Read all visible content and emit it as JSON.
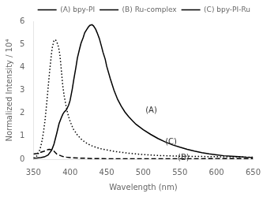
{
  "chart_data": {
    "type": "line",
    "xlabel": "Wavelength (nm)",
    "ylabel": "Normalized Intensity / 10⁴",
    "xlim": [
      350,
      650
    ],
    "ylim": [
      0,
      6
    ],
    "xticks": [
      350,
      400,
      450,
      500,
      550,
      600,
      650
    ],
    "yticks": [
      0,
      1,
      2,
      3,
      4,
      5,
      6
    ],
    "grid": false,
    "legend": "upper right",
    "series": [
      {
        "name": "(A) bpy-PI",
        "color": "black",
        "line_style": "solid",
        "x": [
          350,
          355,
          360,
          365,
          370,
          375,
          378,
          380,
          382,
          385,
          388,
          390,
          392,
          395,
          398,
          400,
          403,
          405,
          408,
          410,
          413,
          415,
          418,
          420,
          423,
          425,
          427,
          430,
          432,
          435,
          437,
          440,
          443,
          445,
          448,
          450,
          455,
          460,
          465,
          470,
          475,
          480,
          485,
          490,
          495,
          500,
          510,
          520,
          530,
          540,
          550,
          560,
          570,
          580,
          590,
          600,
          610,
          620,
          630,
          640,
          650
        ],
        "values": [
          0.04,
          0.05,
          0.07,
          0.1,
          0.18,
          0.4,
          0.65,
          0.9,
          1.15,
          1.55,
          1.8,
          1.95,
          2.05,
          2.15,
          2.35,
          2.55,
          3.05,
          3.45,
          4.0,
          4.4,
          4.8,
          5.05,
          5.3,
          5.5,
          5.65,
          5.75,
          5.82,
          5.85,
          5.8,
          5.65,
          5.5,
          5.25,
          4.9,
          4.65,
          4.35,
          4.05,
          3.5,
          3.0,
          2.6,
          2.3,
          2.05,
          1.85,
          1.68,
          1.52,
          1.4,
          1.28,
          1.08,
          0.9,
          0.75,
          0.62,
          0.52,
          0.43,
          0.35,
          0.28,
          0.23,
          0.19,
          0.15,
          0.13,
          0.11,
          0.09,
          0.08
        ]
      },
      {
        "name": "(B) Ru-complex",
        "color": "black",
        "line_style": "dashed",
        "x": [
          350,
          355,
          360,
          365,
          367,
          370,
          372,
          375,
          378,
          380,
          382,
          385,
          388,
          390,
          395,
          400,
          410,
          420,
          430,
          440,
          450,
          460,
          470,
          480,
          490,
          500,
          520,
          540,
          560,
          580,
          600,
          620,
          640,
          650
        ],
        "values": [
          0.22,
          0.25,
          0.3,
          0.35,
          0.38,
          0.42,
          0.43,
          0.4,
          0.35,
          0.28,
          0.22,
          0.18,
          0.14,
          0.12,
          0.09,
          0.07,
          0.05,
          0.04,
          0.03,
          0.03,
          0.02,
          0.02,
          0.02,
          0.02,
          0.02,
          0.02,
          0.02,
          0.02,
          0.02,
          0.02,
          0.03,
          0.03,
          0.03,
          0.03
        ]
      },
      {
        "name": "(C) bpy-PI-Ru",
        "color": "black",
        "line_style": "dotted",
        "x": [
          350,
          352,
          354,
          356,
          358,
          360,
          362,
          364,
          366,
          368,
          370,
          372,
          374,
          375,
          376,
          378,
          380,
          382,
          384,
          385,
          386,
          387,
          388,
          389,
          390,
          392,
          394,
          396,
          398,
          400,
          403,
          405,
          408,
          410,
          415,
          420,
          425,
          430,
          435,
          440,
          445,
          450,
          455,
          460,
          465,
          470,
          475,
          480,
          490,
          500,
          510,
          520,
          530,
          540,
          550,
          560,
          570,
          580,
          590,
          600,
          610,
          620,
          630,
          640,
          650
        ],
        "values": [
          0.05,
          0.08,
          0.12,
          0.2,
          0.35,
          0.55,
          0.85,
          1.25,
          1.75,
          2.4,
          3.1,
          3.8,
          4.4,
          4.7,
          4.9,
          5.15,
          5.2,
          5.1,
          4.9,
          4.75,
          4.55,
          4.25,
          3.9,
          3.55,
          3.2,
          2.75,
          2.4,
          2.1,
          1.85,
          1.65,
          1.42,
          1.28,
          1.15,
          1.05,
          0.88,
          0.75,
          0.65,
          0.58,
          0.52,
          0.47,
          0.43,
          0.4,
          0.37,
          0.34,
          0.32,
          0.3,
          0.28,
          0.26,
          0.23,
          0.2,
          0.18,
          0.16,
          0.15,
          0.14,
          0.13,
          0.13,
          0.12,
          0.12,
          0.11,
          0.11,
          0.1,
          0.1,
          0.1,
          0.09,
          0.09
        ]
      }
    ],
    "annotations": [
      {
        "text": "(A)",
        "x": 503,
        "y": 1.95
      },
      {
        "text": "(B)",
        "x": 547,
        "y": -0.12
      },
      {
        "text": "(C)",
        "x": 530,
        "y": 0.58
      }
    ]
  }
}
